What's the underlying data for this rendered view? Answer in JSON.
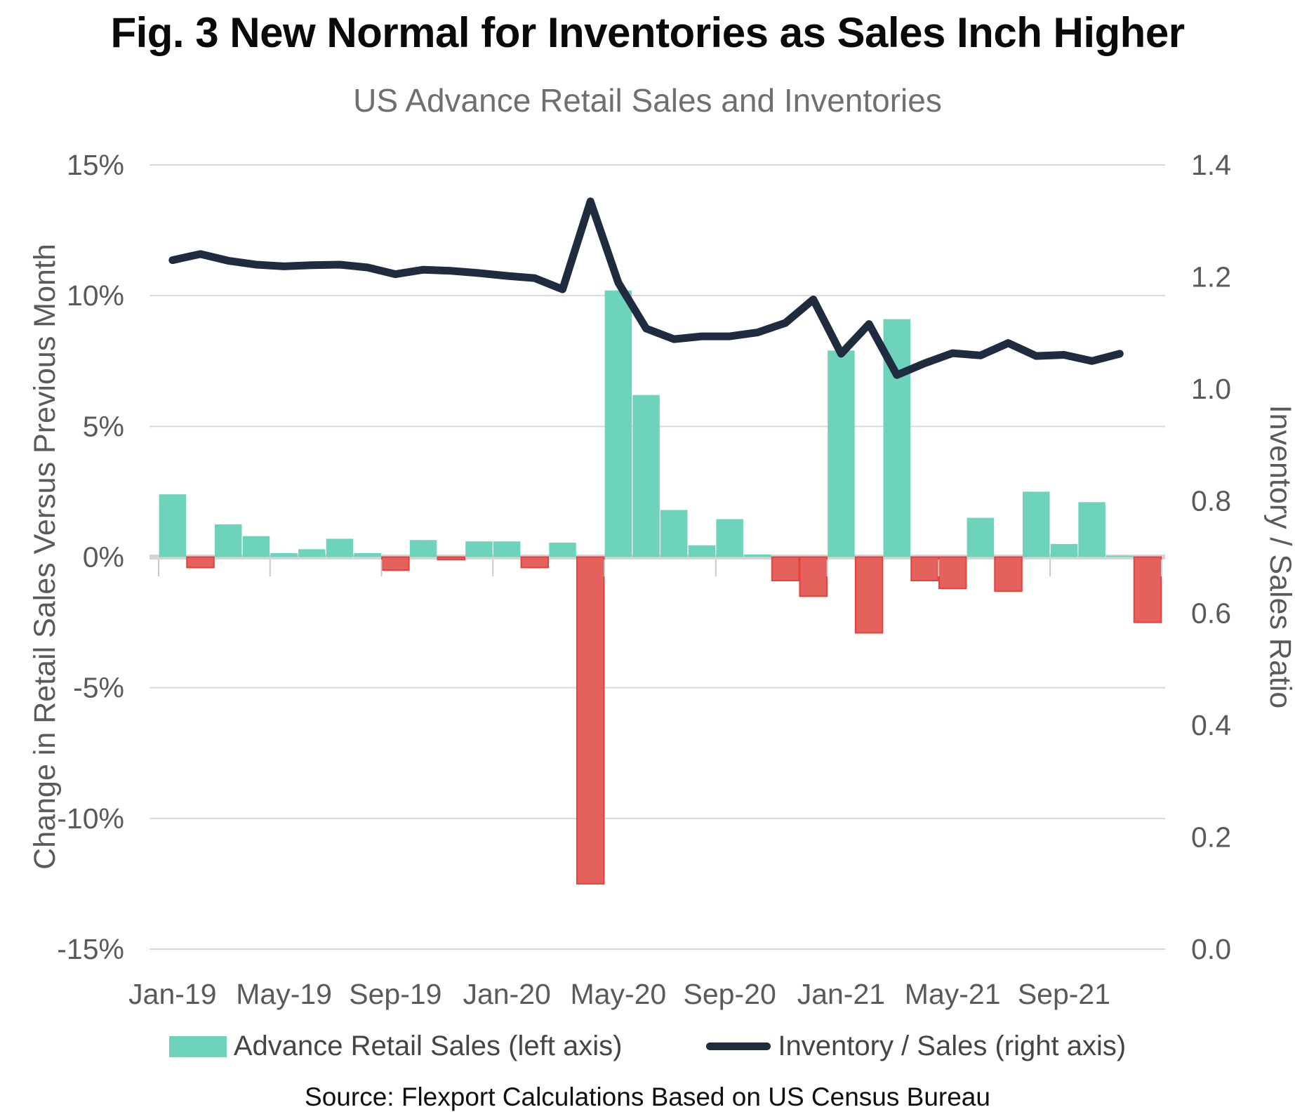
{
  "figure": {
    "title": "Fig. 3 New Normal for Inventories as Sales Inch Higher",
    "subtitle": "US Advance Retail Sales and Inventories",
    "source": "Source: Flexport Calculations Based on US Census Bureau"
  },
  "legend": {
    "bar_label": "Advance Retail Sales (left axis)",
    "line_label": "Inventory / Sales (right axis)"
  },
  "colors": {
    "bar_positive": "#6ED3BB",
    "bar_negative_fill": "#E5615E",
    "bar_negative_stroke": "#E8403B",
    "line": "#1F2B3E",
    "grid": "#D9D9D9",
    "zero_axis": "#D5D5D5",
    "tick_stub": "#C9C9C9",
    "axis_text": "#5A5A5A"
  },
  "chart_data": {
    "type": "combo",
    "title": "US Advance Retail Sales and Inventories",
    "x": [
      "Jan-19",
      "Feb-19",
      "Mar-19",
      "Apr-19",
      "May-19",
      "Jun-19",
      "Jul-19",
      "Aug-19",
      "Sep-19",
      "Oct-19",
      "Nov-19",
      "Dec-19",
      "Jan-20",
      "Feb-20",
      "Mar-20",
      "Apr-20",
      "May-20",
      "Jun-20",
      "Jul-20",
      "Aug-20",
      "Sep-20",
      "Oct-20",
      "Nov-20",
      "Dec-20",
      "Jan-21",
      "Feb-21",
      "Mar-21",
      "Apr-21",
      "May-21",
      "Jun-21",
      "Jul-21",
      "Aug-21",
      "Sep-21",
      "Oct-21",
      "Nov-21",
      "Dec-21"
    ],
    "x_tick_labels": [
      "Jan-19",
      "May-19",
      "Sep-19",
      "Jan-20",
      "May-20",
      "Sep-20",
      "Jan-21",
      "May-21",
      "Sep-21"
    ],
    "series": [
      {
        "name": "Advance Retail Sales (left axis)",
        "type": "bar",
        "axis": "left",
        "unit": "% change vs previous month",
        "values": [
          2.4,
          -0.4,
          1.25,
          0.8,
          0.15,
          0.3,
          0.7,
          0.15,
          -0.5,
          0.65,
          -0.1,
          0.6,
          0.6,
          -0.4,
          0.55,
          -12.5,
          10.2,
          6.2,
          1.8,
          0.45,
          1.45,
          0.1,
          -0.9,
          -1.5,
          7.9,
          -2.9,
          9.1,
          -0.9,
          -1.2,
          1.5,
          -1.3,
          2.5,
          0.5,
          2.1,
          0.05,
          -2.5
        ]
      },
      {
        "name": "Inventory / Sales (right axis)",
        "type": "line",
        "axis": "right",
        "unit": "ratio",
        "values": [
          1.23,
          1.241,
          1.229,
          1.222,
          1.219,
          1.221,
          1.222,
          1.217,
          1.205,
          1.213,
          1.211,
          1.207,
          1.202,
          1.198,
          1.178,
          1.335,
          1.19,
          1.108,
          1.089,
          1.094,
          1.094,
          1.101,
          1.118,
          1.16,
          1.063,
          1.116,
          1.025,
          1.046,
          1.064,
          1.06,
          1.082,
          1.059,
          1.061,
          1.05,
          1.063,
          null
        ]
      }
    ],
    "left_axis": {
      "label": "Change in Retail Sales Versus Previous Month",
      "ticks": [
        "15%",
        "10%",
        "5%",
        "0%",
        "-5%",
        "-10%",
        "-15%"
      ],
      "min": -15,
      "max": 15
    },
    "right_axis": {
      "label": "Inventory / Sales Ratio",
      "ticks": [
        "1.4",
        "1.2",
        "1.0",
        "0.8",
        "0.6",
        "0.4",
        "0.2",
        "0.0"
      ],
      "min": 0.0,
      "max": 1.4
    },
    "grid": true,
    "legend_position": "bottom"
  }
}
